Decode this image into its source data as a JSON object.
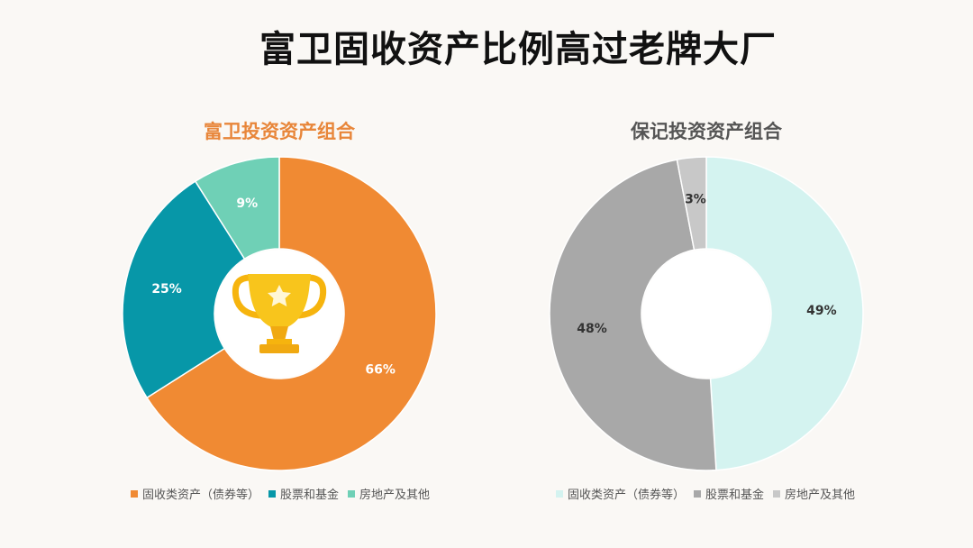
{
  "title": "富卫固收资产比例高过老牌大厂",
  "chart_data": [
    {
      "type": "pie",
      "title": "富卫投资资产组合",
      "title_color": "#e8863a",
      "categories": [
        "固收类资产（债券等）",
        "股票和基金",
        "房地产及其他"
      ],
      "values": [
        66,
        25,
        9
      ],
      "labels": [
        "66%",
        "25%",
        "9%"
      ],
      "colors": [
        "#f08a33",
        "#0797a8",
        "#6fd0b6"
      ],
      "label_colors": [
        "#ffffff",
        "#ffffff",
        "#ffffff"
      ],
      "legend_position": "bottom",
      "center_icon": "trophy-icon"
    },
    {
      "type": "pie",
      "title": "保记投资资产组合",
      "title_color": "#555555",
      "categories": [
        "固收类资产（债券等）",
        "股票和基金",
        "房地产及其他"
      ],
      "values": [
        49,
        48,
        3
      ],
      "labels": [
        "49%",
        "48%",
        "3%"
      ],
      "colors": [
        "#d4f3f0",
        "#a8a8a8",
        "#c8c8c8"
      ],
      "label_colors": [
        "#333333",
        "#333333",
        "#333333"
      ],
      "legend_position": "bottom"
    }
  ]
}
